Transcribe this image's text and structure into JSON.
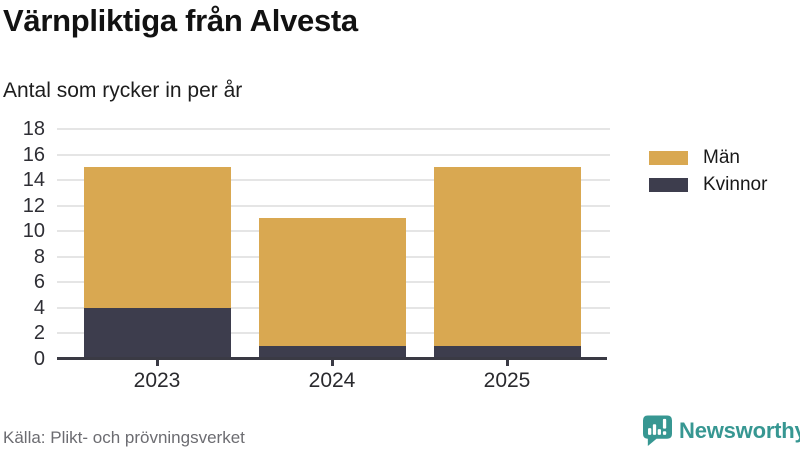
{
  "header": {
    "title": "Värnpliktiga från Alvesta",
    "subtitle": "Antal som rycker in per år"
  },
  "chart_data": {
    "type": "bar",
    "stacked": true,
    "title": "Värnpliktiga från Alvesta",
    "subtitle": "Antal som rycker in per år",
    "categories": [
      "2023",
      "2024",
      "2025"
    ],
    "series": [
      {
        "name": "Kvinnor",
        "values": [
          4,
          1,
          1
        ],
        "color": "#3d3d4d"
      },
      {
        "name": "Män",
        "values": [
          11,
          10,
          14
        ],
        "color": "#d9a851"
      }
    ],
    "totals": [
      15,
      11,
      15
    ],
    "ylim": [
      0,
      18
    ],
    "ytick_step": 2,
    "yticks": [
      0,
      2,
      4,
      6,
      8,
      10,
      12,
      14,
      16,
      18
    ],
    "grid": true,
    "legend": {
      "position": "right",
      "entries": [
        {
          "label": "Män",
          "color": "#d9a851"
        },
        {
          "label": "Kvinnor",
          "color": "#3d3d4d"
        }
      ]
    }
  },
  "footer": {
    "source": "Källa: Plikt- och prövningsverket",
    "brand": "Newsworthy"
  },
  "colors": {
    "men": "#d9a851",
    "women": "#3d3d4d",
    "brand_teal": "#379792",
    "gridline": "#e5e5e5",
    "axis": "#3a3a44"
  }
}
